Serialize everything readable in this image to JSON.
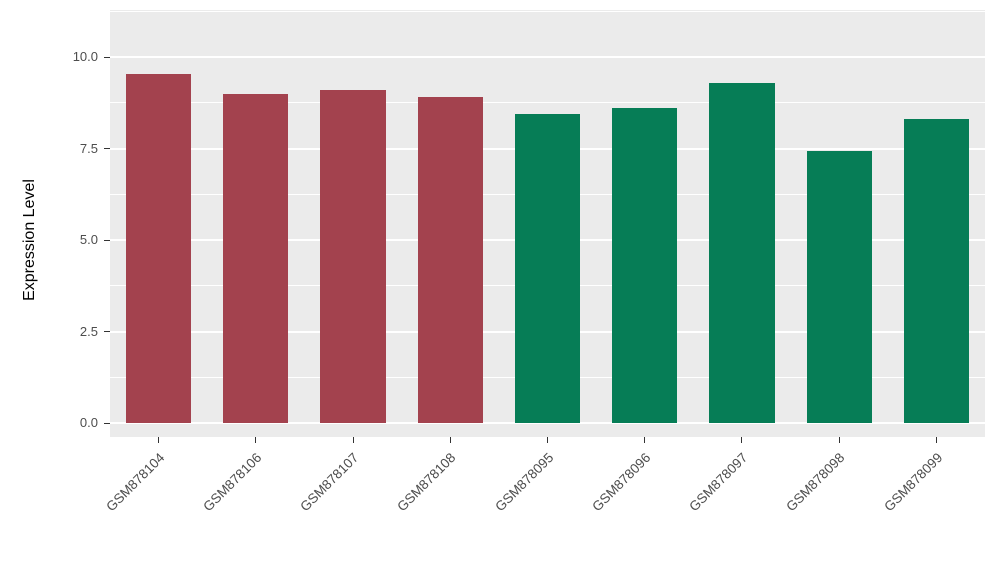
{
  "chart_data": {
    "type": "bar",
    "categories": [
      "GSM878104",
      "GSM878106",
      "GSM878107",
      "GSM878108",
      "GSM878095",
      "GSM878096",
      "GSM878097",
      "GSM878098",
      "GSM878099"
    ],
    "values": [
      9.55,
      9.0,
      9.1,
      8.9,
      8.45,
      8.6,
      9.3,
      7.45,
      8.3
    ],
    "bar_colors": [
      "#A3424E",
      "#A3424E",
      "#A3424E",
      "#A3424E",
      "#067D56",
      "#067D56",
      "#067D56",
      "#067D56",
      "#067D56"
    ],
    "title": "",
    "xlabel": "",
    "ylabel": "Expression Level",
    "ylim": [
      -0.38,
      11.29
    ],
    "yticks": [
      0.0,
      2.5,
      5.0,
      7.5,
      10.0
    ],
    "ytick_labels": [
      "0.0",
      "2.5",
      "5.0",
      "7.5",
      "10.0"
    ],
    "minor_gridlines": [
      1.25,
      3.75,
      6.25,
      8.75,
      11.25
    ],
    "grid": true,
    "legend": "none",
    "panel_bg": "#EBEBEB",
    "grid_color": "#FFFFFF",
    "group_colors": {
      "group_red": "#A3424E",
      "group_green": "#067D56"
    }
  }
}
